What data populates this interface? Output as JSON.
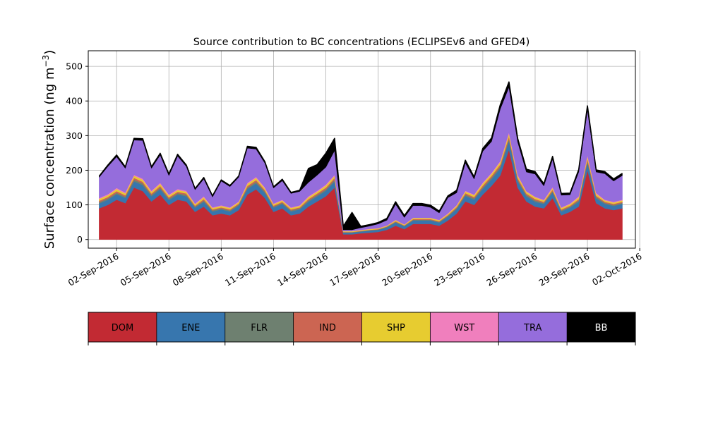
{
  "chart_data": {
    "type": "area",
    "title": "Source contribution to BC concentrations (ECLIPSEv6 and GFED4)",
    "ylabel_main": "Surface concentration (ng m",
    "ylabel_exp": "−3",
    "ylabel_close": ")",
    "ylim": [
      -25,
      545
    ],
    "xlim": [
      "2016-08-31T09:00",
      "2016-10-01T18:00"
    ],
    "yticks": [
      0,
      100,
      200,
      300,
      400,
      500
    ],
    "yticklabels": [
      "0",
      "100",
      "200",
      "300",
      "400",
      "500"
    ],
    "xticks": [
      "2016-09-02",
      "2016-09-05",
      "2016-09-08",
      "2016-09-11",
      "2016-09-14",
      "2016-09-17",
      "2016-09-20",
      "2016-09-23",
      "2016-09-26",
      "2016-09-29",
      "2016-10-02"
    ],
    "xticklabels": [
      "02-Sep-2016",
      "05-Sep-2016",
      "08-Sep-2016",
      "11-Sep-2016",
      "14-Sep-2016",
      "17-Sep-2016",
      "20-Sep-2016",
      "23-Sep-2016",
      "26-Sep-2016",
      "29-Sep-2016",
      "02-Oct-2016"
    ],
    "grid": true,
    "stacked": true,
    "x": [
      "2016-09-01T00:00",
      "2016-09-01T12:00",
      "2016-09-02T00:00",
      "2016-09-02T12:00",
      "2016-09-03T00:00",
      "2016-09-03T12:00",
      "2016-09-04T00:00",
      "2016-09-04T12:00",
      "2016-09-05T00:00",
      "2016-09-05T12:00",
      "2016-09-06T00:00",
      "2016-09-06T12:00",
      "2016-09-07T00:00",
      "2016-09-07T12:00",
      "2016-09-08T00:00",
      "2016-09-08T12:00",
      "2016-09-09T00:00",
      "2016-09-09T12:00",
      "2016-09-10T00:00",
      "2016-09-10T12:00",
      "2016-09-11T00:00",
      "2016-09-11T12:00",
      "2016-09-12T00:00",
      "2016-09-12T12:00",
      "2016-09-13T00:00",
      "2016-09-13T12:00",
      "2016-09-14T00:00",
      "2016-09-14T12:00",
      "2016-09-15T00:00",
      "2016-09-15T12:00",
      "2016-09-16T00:00",
      "2016-09-16T12:00",
      "2016-09-17T00:00",
      "2016-09-17T12:00",
      "2016-09-18T00:00",
      "2016-09-18T12:00",
      "2016-09-19T00:00",
      "2016-09-19T12:00",
      "2016-09-20T00:00",
      "2016-09-20T12:00",
      "2016-09-21T00:00",
      "2016-09-21T12:00",
      "2016-09-22T00:00",
      "2016-09-22T12:00",
      "2016-09-23T00:00",
      "2016-09-23T12:00",
      "2016-09-24T00:00",
      "2016-09-24T12:00",
      "2016-09-25T00:00",
      "2016-09-25T12:00",
      "2016-09-26T00:00",
      "2016-09-26T12:00",
      "2016-09-27T00:00",
      "2016-09-27T12:00",
      "2016-09-28T00:00",
      "2016-09-28T12:00",
      "2016-09-29T00:00",
      "2016-09-29T12:00",
      "2016-09-30T00:00",
      "2016-09-30T12:00",
      "2016-10-01T00:00"
    ],
    "series": [
      {
        "name": "DOM",
        "color": "#c22a33",
        "values": [
          90,
          100,
          115,
          105,
          150,
          140,
          110,
          130,
          100,
          115,
          110,
          80,
          95,
          70,
          75,
          70,
          85,
          130,
          145,
          120,
          80,
          90,
          70,
          75,
          95,
          110,
          125,
          150,
          15,
          15,
          18,
          20,
          22,
          28,
          40,
          30,
          45,
          45,
          45,
          40,
          55,
          75,
          110,
          100,
          130,
          155,
          185,
          260,
          150,
          110,
          95,
          90,
          120,
          70,
          80,
          95,
          200,
          105,
          90,
          85,
          90
        ]
      },
      {
        "name": "ENE",
        "color": "#3776ae",
        "values": [
          14,
          15,
          16,
          15,
          18,
          17,
          15,
          16,
          14,
          15,
          15,
          12,
          14,
          11,
          12,
          11,
          13,
          16,
          17,
          15,
          12,
          13,
          11,
          12,
          14,
          15,
          16,
          18,
          5,
          5,
          5,
          6,
          6,
          7,
          9,
          8,
          10,
          10,
          10,
          9,
          11,
          13,
          16,
          15,
          17,
          19,
          21,
          25,
          18,
          15,
          14,
          13,
          16,
          11,
          12,
          14,
          22,
          14,
          13,
          12,
          13
        ]
      },
      {
        "name": "FLR",
        "color": "#6e8070",
        "values": [
          4,
          4,
          4,
          4,
          5,
          5,
          4,
          4,
          4,
          4,
          4,
          3,
          4,
          3,
          3,
          3,
          3,
          4,
          5,
          4,
          3,
          3,
          3,
          3,
          4,
          4,
          4,
          5,
          1,
          1,
          1,
          1,
          1,
          2,
          2,
          2,
          2,
          2,
          2,
          2,
          3,
          3,
          4,
          4,
          4,
          5,
          5,
          6,
          5,
          4,
          4,
          3,
          4,
          3,
          3,
          4,
          5,
          4,
          3,
          3,
          3
        ]
      },
      {
        "name": "IND",
        "color": "#cc6552",
        "values": [
          4,
          4,
          5,
          4,
          5,
          5,
          4,
          5,
          4,
          4,
          4,
          3,
          4,
          3,
          3,
          3,
          3,
          5,
          5,
          4,
          3,
          3,
          3,
          3,
          4,
          4,
          5,
          5,
          1,
          1,
          1,
          1,
          1,
          1,
          2,
          1,
          2,
          2,
          2,
          2,
          2,
          3,
          4,
          4,
          5,
          5,
          6,
          7,
          5,
          4,
          4,
          3,
          4,
          3,
          3,
          4,
          6,
          4,
          3,
          3,
          3
        ]
      },
      {
        "name": "SHP",
        "color": "#e7cc30",
        "values": [
          5,
          5,
          6,
          5,
          6,
          6,
          5,
          6,
          5,
          5,
          5,
          4,
          5,
          4,
          4,
          4,
          4,
          6,
          6,
          5,
          4,
          4,
          4,
          4,
          5,
          5,
          6,
          6,
          2,
          2,
          2,
          2,
          2,
          2,
          3,
          2,
          3,
          3,
          3,
          3,
          3,
          4,
          5,
          5,
          6,
          6,
          7,
          8,
          6,
          5,
          5,
          4,
          5,
          4,
          4,
          5,
          7,
          5,
          4,
          4,
          4
        ]
      },
      {
        "name": "WST",
        "color": "#f07fbd",
        "values": [
          3,
          3,
          3,
          3,
          3,
          3,
          3,
          3,
          3,
          3,
          3,
          2,
          3,
          2,
          2,
          2,
          2,
          3,
          3,
          3,
          2,
          2,
          2,
          2,
          3,
          3,
          3,
          3,
          1,
          1,
          1,
          1,
          1,
          1,
          1,
          1,
          1,
          1,
          1,
          1,
          2,
          2,
          2,
          2,
          3,
          3,
          3,
          4,
          3,
          2,
          2,
          2,
          3,
          2,
          2,
          3,
          4,
          3,
          2,
          2,
          2
        ]
      },
      {
        "name": "TRA",
        "color": "#956ddc",
        "values": [
          60,
          80,
          90,
          70,
          100,
          110,
          65,
          80,
          55,
          95,
          70,
          40,
          50,
          30,
          70,
          60,
          70,
          100,
          80,
          70,
          45,
          55,
          40,
          40,
          40,
          45,
          50,
          70,
          3,
          3,
          6,
          8,
          12,
          15,
          45,
          20,
          35,
          35,
          30,
          20,
          45,
          35,
          80,
          45,
          90,
          90,
          150,
          130,
          95,
          55,
          65,
          40,
          80,
          35,
          25,
          70,
          130,
          60,
          75,
          60,
          70
        ]
      },
      {
        "name": "BB",
        "color": "#000000",
        "values": [
          3,
          4,
          5,
          4,
          5,
          5,
          4,
          5,
          4,
          5,
          4,
          3,
          4,
          3,
          3,
          3,
          3,
          5,
          5,
          4,
          3,
          4,
          3,
          3,
          40,
          30,
          40,
          35,
          10,
          50,
          4,
          4,
          4,
          5,
          7,
          5,
          6,
          6,
          6,
          5,
          5,
          7,
          8,
          6,
          8,
          10,
          12,
          15,
          10,
          8,
          7,
          6,
          8,
          5,
          5,
          7,
          12,
          6,
          6,
          6,
          6
        ]
      }
    ],
    "legend": {
      "placement": "bottom-colorbar",
      "entries": [
        {
          "label": "DOM",
          "color": "#c22a33",
          "text_color": "#000000"
        },
        {
          "label": "ENE",
          "color": "#3776ae",
          "text_color": "#000000"
        },
        {
          "label": "FLR",
          "color": "#6e8070",
          "text_color": "#000000"
        },
        {
          "label": "IND",
          "color": "#cc6552",
          "text_color": "#000000"
        },
        {
          "label": "SHP",
          "color": "#e7cc30",
          "text_color": "#000000"
        },
        {
          "label": "WST",
          "color": "#f07fbd",
          "text_color": "#000000"
        },
        {
          "label": "TRA",
          "color": "#956ddc",
          "text_color": "#000000"
        },
        {
          "label": "BB",
          "color": "#000000",
          "text_color": "#ffffff"
        }
      ]
    }
  }
}
